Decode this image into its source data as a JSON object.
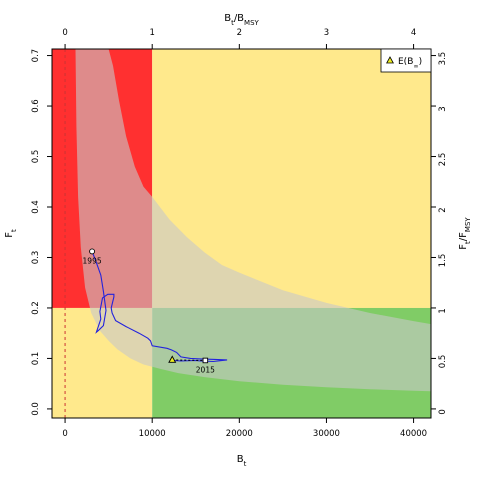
{
  "chart_data": {
    "type": "line",
    "xlabel": "B",
    "xlabel_sub": "t",
    "ylabel": "F",
    "ylabel_sub": "t",
    "top_label": {
      "main": "B",
      "sub": "t",
      "sep": "/B",
      "sub2": "MSY"
    },
    "right_label": {
      "main": "F",
      "sub": "t",
      "sep": "/F",
      "sub2": "MSY"
    },
    "xlim": [
      -1500,
      42000
    ],
    "ylim": [
      -0.018,
      0.713
    ],
    "x_ticks": [
      0,
      10000,
      20000,
      30000,
      40000
    ],
    "x_tick_labels": [
      "0",
      "10000",
      "20000",
      "30000",
      "40000"
    ],
    "y_ticks": [
      0.0,
      0.1,
      0.2,
      0.3,
      0.4,
      0.5,
      0.6,
      0.7
    ],
    "y_tick_labels": [
      "0.0",
      "0.1",
      "0.2",
      "0.3",
      "0.4",
      "0.5",
      "0.6",
      "0.7"
    ],
    "top_ticks": [
      0,
      10000,
      20000,
      30000,
      40000
    ],
    "top_tick_labels": [
      "0",
      "1",
      "2",
      "3",
      "4"
    ],
    "right_ticks": [
      0,
      0.1,
      0.2,
      0.3,
      0.4,
      0.5,
      0.6,
      0.7
    ],
    "right_tick_labels": [
      "0",
      "0.5",
      "1",
      "1.5",
      "2",
      "2.5",
      "3",
      "3.5"
    ],
    "bmsy": 10000,
    "fmsy": 0.2,
    "colors": {
      "red": "#ff3030",
      "yellow": "#ffe98c",
      "green": "#80cc66",
      "band": "#c8c8c8",
      "trajectory": "#2222dd",
      "dashed_line": "#cc3333",
      "marker_fill": "#eeee22"
    },
    "uncertainty_band": {
      "upper": [
        [
          1200,
          0.713
        ],
        [
          1800,
          0.713
        ],
        [
          2500,
          0.713
        ],
        [
          3500,
          0.713
        ],
        [
          5000,
          0.713
        ],
        [
          5500,
          0.68
        ],
        [
          6200,
          0.61
        ],
        [
          7000,
          0.54
        ],
        [
          8000,
          0.48
        ],
        [
          9000,
          0.44
        ],
        [
          10000,
          0.42
        ],
        [
          12000,
          0.375
        ],
        [
          14000,
          0.34
        ],
        [
          16000,
          0.31
        ],
        [
          18000,
          0.285
        ],
        [
          20000,
          0.27
        ],
        [
          25000,
          0.235
        ],
        [
          30000,
          0.21
        ],
        [
          35000,
          0.19
        ],
        [
          40000,
          0.174
        ],
        [
          42000,
          0.168
        ]
      ],
      "lower": [
        [
          42000,
          0.035
        ],
        [
          40000,
          0.036
        ],
        [
          35000,
          0.039
        ],
        [
          30000,
          0.043
        ],
        [
          25000,
          0.048
        ],
        [
          20000,
          0.055
        ],
        [
          16000,
          0.063
        ],
        [
          13000,
          0.071
        ],
        [
          11000,
          0.079
        ],
        [
          9000,
          0.088
        ],
        [
          7500,
          0.1
        ],
        [
          6000,
          0.118
        ],
        [
          5000,
          0.135
        ],
        [
          4000,
          0.155
        ],
        [
          3000,
          0.19
        ],
        [
          2300,
          0.24
        ],
        [
          1800,
          0.32
        ],
        [
          1500,
          0.42
        ],
        [
          1300,
          0.56
        ],
        [
          1200,
          0.713
        ]
      ]
    },
    "series": [
      {
        "x": [
          3100,
          3500,
          4100,
          4400,
          4700,
          4400,
          3800,
          3600,
          4100,
          4000,
          4300,
          4900,
          5600,
          5600,
          5300,
          5400,
          5800,
          7000,
          8500,
          9500,
          9800,
          10000,
          11700,
          12200,
          12800,
          13300,
          14400,
          15500,
          17200,
          18600,
          17000,
          15600,
          14900,
          13300,
          12500,
          12300
        ],
        "y": [
          0.312,
          0.294,
          0.265,
          0.233,
          0.195,
          0.165,
          0.155,
          0.152,
          0.178,
          0.193,
          0.22,
          0.227,
          0.227,
          0.222,
          0.2,
          0.19,
          0.175,
          0.163,
          0.15,
          0.14,
          0.135,
          0.125,
          0.12,
          0.117,
          0.112,
          0.103,
          0.1,
          0.099,
          0.098,
          0.097,
          0.094,
          0.095,
          0.096,
          0.095,
          0.096,
          0.097
        ]
      }
    ],
    "start_point": {
      "x": 3100,
      "y": 0.312,
      "label": "1995"
    },
    "end_point": {
      "x": 16100,
      "y": 0.096,
      "label": "2015"
    },
    "expected_point": {
      "x": 12300,
      "y": 0.097,
      "label_main": "E(B",
      "label_sub": "∞",
      "label_end": ")"
    },
    "legend": {
      "position": "top-right"
    }
  }
}
